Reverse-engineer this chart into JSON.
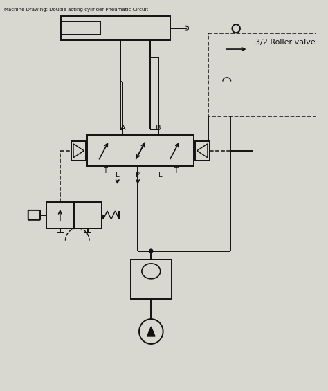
{
  "bg_color": "#d8d8d0",
  "line_color": "#111111",
  "label_3_2": "3/2 Roller valve",
  "label_A": "A",
  "label_B": "B",
  "label_E1": "E",
  "label_P": "P",
  "label_E2": "E",
  "figsize": [
    4.74,
    5.65
  ],
  "dpi": 100
}
